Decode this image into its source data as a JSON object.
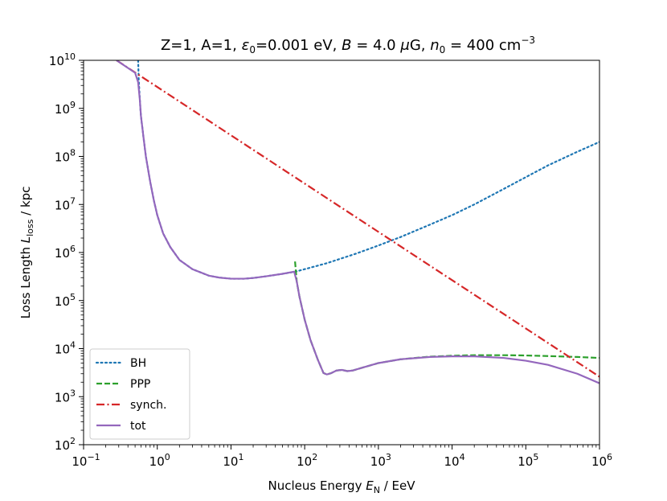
{
  "chart_data": {
    "type": "line",
    "title": {
      "prefix": "Z=1, A=1, ",
      "eps_sym": "ε",
      "eps_sub": "0",
      "eps_val": "=0.001 eV, ",
      "b_sym": "B",
      "b_val": " = 4.0 ",
      "mu_sym": "μ",
      "b_unit": "G, ",
      "n_sym": "n",
      "n_sub": "0",
      "n_val": " = 400 cm",
      "n_exp": "−3"
    },
    "xlabel": {
      "text": "Nucleus Energy ",
      "sym": "E",
      "sub": "N",
      "unit": " / EeV"
    },
    "ylabel": {
      "text": "Loss Length ",
      "sym": "L",
      "sub": "loss",
      "unit": " / kpc"
    },
    "x_scale": "log",
    "y_scale": "log",
    "xlim": [
      0.1,
      1000000
    ],
    "ylim": [
      100,
      10000000000
    ],
    "x_ticks": [
      {
        "value": 0.1,
        "base": "10",
        "exp": "−1"
      },
      {
        "value": 1,
        "base": "10",
        "exp": "0"
      },
      {
        "value": 10,
        "base": "10",
        "exp": "1"
      },
      {
        "value": 100,
        "base": "10",
        "exp": "2"
      },
      {
        "value": 1000,
        "base": "10",
        "exp": "3"
      },
      {
        "value": 10000,
        "base": "10",
        "exp": "4"
      },
      {
        "value": 100000,
        "base": "10",
        "exp": "5"
      },
      {
        "value": 1000000,
        "base": "10",
        "exp": "6"
      }
    ],
    "y_ticks": [
      {
        "value": 100,
        "base": "10",
        "exp": "2"
      },
      {
        "value": 1000,
        "base": "10",
        "exp": "3"
      },
      {
        "value": 10000,
        "base": "10",
        "exp": "4"
      },
      {
        "value": 100000,
        "base": "10",
        "exp": "5"
      },
      {
        "value": 1000000,
        "base": "10",
        "exp": "6"
      },
      {
        "value": 10000000,
        "base": "10",
        "exp": "7"
      },
      {
        "value": 100000000,
        "base": "10",
        "exp": "8"
      },
      {
        "value": 1000000000,
        "base": "10",
        "exp": "9"
      },
      {
        "value": 10000000000,
        "base": "10",
        "exp": "10"
      }
    ],
    "grid": false,
    "legend_position": "lower-left",
    "series": [
      {
        "name": "BH",
        "color": "#1f77b4",
        "style": "dotted",
        "points": [
          [
            0.55,
            10000000000.0
          ],
          [
            0.56,
            4000000000.0
          ],
          [
            0.58,
            1500000000.0
          ],
          [
            0.6,
            700000000.0
          ],
          [
            0.65,
            250000000.0
          ],
          [
            0.7,
            100000000.0
          ],
          [
            0.8,
            30000000.0
          ],
          [
            0.9,
            12000000.0
          ],
          [
            1.0,
            6000000.0
          ],
          [
            1.2,
            2500000.0
          ],
          [
            1.5,
            1300000.0
          ],
          [
            2,
            700000.0
          ],
          [
            3,
            450000.0
          ],
          [
            5,
            330000.0
          ],
          [
            7,
            300000.0
          ],
          [
            10,
            285000.0
          ],
          [
            15,
            285000.0
          ],
          [
            20,
            295000.0
          ],
          [
            30,
            320000.0
          ],
          [
            50,
            360000.0
          ],
          [
            75,
            400000.0
          ],
          [
            100,
            450000.0
          ],
          [
            200,
            600000.0
          ],
          [
            500,
            950000.0
          ],
          [
            1000,
            1400000.0
          ],
          [
            2000,
            2100000.0
          ],
          [
            5000,
            3800000.0
          ],
          [
            10000,
            6000000.0
          ],
          [
            20000,
            10000000.0
          ],
          [
            50000,
            21000000.0
          ],
          [
            100000,
            37000000.0
          ],
          [
            200000,
            65000000.0
          ],
          [
            500000,
            125000000.0
          ],
          [
            1000000,
            200000000.0
          ]
        ]
      },
      {
        "name": "PPP",
        "color": "#2ca02c",
        "style": "dashed",
        "points": [
          [
            74,
            650000.0
          ],
          [
            78,
            250000.0
          ],
          [
            85,
            120000.0
          ],
          [
            100,
            40000.0
          ],
          [
            120,
            15000.0
          ],
          [
            150,
            6000.0
          ],
          [
            180,
            3100.0
          ],
          [
            200,
            2900.0
          ],
          [
            230,
            3100.0
          ],
          [
            270,
            3500.0
          ],
          [
            320,
            3600.0
          ],
          [
            380,
            3400.0
          ],
          [
            450,
            3500.0
          ],
          [
            600,
            4000.0
          ],
          [
            1000,
            5000.0
          ],
          [
            2000,
            6000.0
          ],
          [
            5000,
            6800.0
          ],
          [
            10000,
            7100.0
          ],
          [
            20000,
            7300.0
          ],
          [
            50000,
            7300.0
          ],
          [
            100000,
            7200.0
          ],
          [
            200000,
            7000.0
          ],
          [
            500000,
            6700.0
          ],
          [
            1000000,
            6400.0
          ]
        ]
      },
      {
        "name": "synch.",
        "color": "#d62728",
        "style": "dashdot",
        "points": [
          [
            0.28,
            10000000000.0
          ],
          [
            1000000,
            2600.0
          ]
        ]
      },
      {
        "name": "tot",
        "color": "#9467bd",
        "style": "solid",
        "points": [
          [
            0.28,
            10000000000.0
          ],
          [
            0.5,
            5500000000.0
          ],
          [
            0.55,
            3500000000.0
          ],
          [
            0.58,
            1500000000.0
          ],
          [
            0.6,
            700000000.0
          ],
          [
            0.65,
            250000000.0
          ],
          [
            0.7,
            100000000.0
          ],
          [
            0.8,
            30000000.0
          ],
          [
            0.9,
            12000000.0
          ],
          [
            1.0,
            6000000.0
          ],
          [
            1.2,
            2500000.0
          ],
          [
            1.5,
            1300000.0
          ],
          [
            2,
            700000.0
          ],
          [
            3,
            450000.0
          ],
          [
            5,
            330000.0
          ],
          [
            7,
            300000.0
          ],
          [
            10,
            285000.0
          ],
          [
            15,
            285000.0
          ],
          [
            20,
            295000.0
          ],
          [
            30,
            320000.0
          ],
          [
            50,
            360000.0
          ],
          [
            72,
            400000.0
          ],
          [
            78,
            250000.0
          ],
          [
            85,
            120000.0
          ],
          [
            100,
            40000.0
          ],
          [
            120,
            15000.0
          ],
          [
            150,
            6000.0
          ],
          [
            180,
            3100.0
          ],
          [
            200,
            2900.0
          ],
          [
            230,
            3100.0
          ],
          [
            270,
            3500.0
          ],
          [
            320,
            3600.0
          ],
          [
            380,
            3400.0
          ],
          [
            450,
            3500.0
          ],
          [
            600,
            4000.0
          ],
          [
            1000,
            5000.0
          ],
          [
            2000,
            6000.0
          ],
          [
            5000,
            6700.0
          ],
          [
            10000,
            6900.0
          ],
          [
            20000,
            6900.0
          ],
          [
            50000,
            6400.0
          ],
          [
            100000,
            5600.0
          ],
          [
            200000,
            4600.0
          ],
          [
            500000,
            3000.0
          ],
          [
            1000000,
            1900.0
          ]
        ]
      }
    ]
  }
}
